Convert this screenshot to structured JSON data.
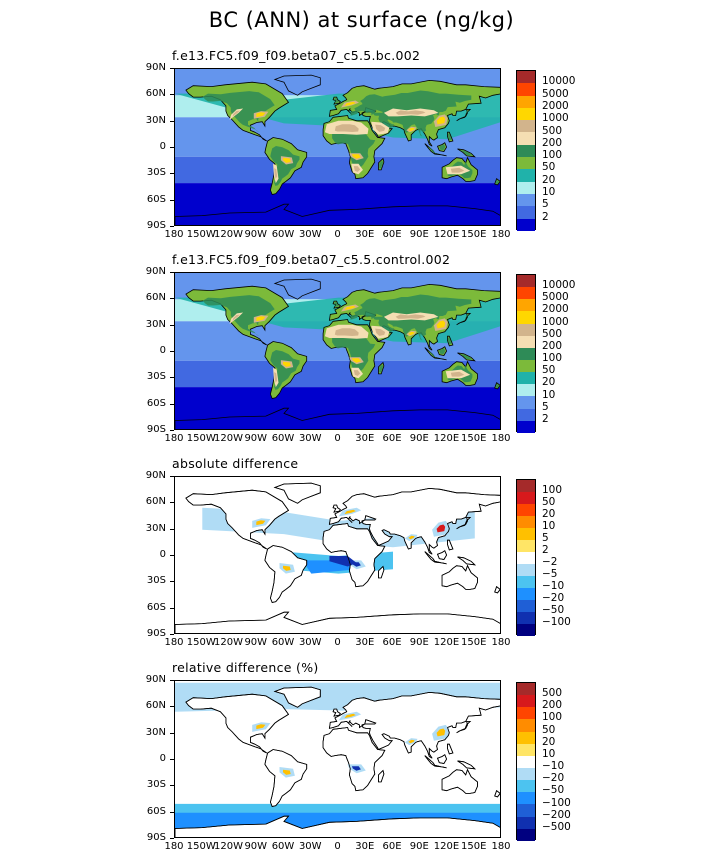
{
  "title": "BC (ANN) at surface (ng/kg)",
  "chart_data": [
    {
      "type": "heatmap",
      "subtitle": "f.e13.FC5.f09_f09.beta07_c5.5.bc.002",
      "y_ticks": [
        "90N",
        "60N",
        "30N",
        "0",
        "30S",
        "60S",
        "90S"
      ],
      "x_ticks": [
        "180",
        "150W",
        "120W",
        "90W",
        "60W",
        "30W",
        "0",
        "30E",
        "60E",
        "90E",
        "120E",
        "150E",
        "180"
      ],
      "levels": [
        "10000",
        "5000",
        "2000",
        "1000",
        "500",
        "200",
        "100",
        "50",
        "20",
        "10",
        "5",
        "2"
      ],
      "colors": [
        "#a52a2a",
        "#ff4500",
        "#ffa500",
        "#ffd700",
        "#d2b48c",
        "#f5deb3",
        "#2e8b57",
        "#7cba3a",
        "#20b2aa",
        "#afeeee",
        "#6495ed",
        "#4169e1",
        "#0000cd"
      ],
      "ocean": "#0a1ecc"
    },
    {
      "type": "heatmap",
      "subtitle": "f.e13.FC5.f09_f09.beta07_c5.5.control.002",
      "y_ticks": [
        "90N",
        "60N",
        "30N",
        "0",
        "30S",
        "60S",
        "90S"
      ],
      "x_ticks": [
        "180",
        "150W",
        "120W",
        "90W",
        "60W",
        "30W",
        "0",
        "30E",
        "60E",
        "90E",
        "120E",
        "150E",
        "180"
      ],
      "levels": [
        "10000",
        "5000",
        "2000",
        "1000",
        "500",
        "200",
        "100",
        "50",
        "20",
        "10",
        "5",
        "2"
      ],
      "colors": [
        "#a52a2a",
        "#ff4500",
        "#ffa500",
        "#ffd700",
        "#d2b48c",
        "#f5deb3",
        "#2e8b57",
        "#7cba3a",
        "#20b2aa",
        "#afeeee",
        "#6495ed",
        "#4169e1",
        "#0000cd"
      ],
      "ocean": "#0a1ecc"
    },
    {
      "type": "heatmap",
      "subtitle": "absolute difference",
      "y_ticks": [
        "90N",
        "60N",
        "30N",
        "0",
        "30S",
        "60S",
        "90S"
      ],
      "x_ticks": [
        "180",
        "150W",
        "120W",
        "90W",
        "60W",
        "30W",
        "0",
        "30E",
        "60E",
        "90E",
        "120E",
        "150E",
        "180"
      ],
      "levels": [
        "100",
        "50",
        "20",
        "10",
        "5",
        "2",
        "−2",
        "−5",
        "−10",
        "−20",
        "−50",
        "−100"
      ],
      "colors": [
        "#a52a2a",
        "#d7191c",
        "#ff4500",
        "#ff8c00",
        "#ffc000",
        "#ffe566",
        "#ffffff",
        "#b0dcf5",
        "#4cc3f0",
        "#1e90ff",
        "#1f5fd6",
        "#1030b0",
        "#000080"
      ],
      "ocean": "#ffffff"
    },
    {
      "type": "heatmap",
      "subtitle": "relative difference (%)",
      "y_ticks": [
        "90N",
        "60N",
        "30N",
        "0",
        "30S",
        "60S",
        "90S"
      ],
      "x_ticks": [
        "180",
        "150W",
        "120W",
        "90W",
        "60W",
        "30W",
        "0",
        "30E",
        "60E",
        "90E",
        "120E",
        "150E",
        "180"
      ],
      "levels": [
        "500",
        "200",
        "100",
        "50",
        "20",
        "10",
        "−10",
        "−20",
        "−50",
        "−100",
        "−200",
        "−500"
      ],
      "colors": [
        "#a52a2a",
        "#d7191c",
        "#ff4500",
        "#ff8c00",
        "#ffc000",
        "#ffe566",
        "#ffffff",
        "#b0dcf5",
        "#4cc3f0",
        "#1e90ff",
        "#1f5fd6",
        "#1030b0",
        "#000080"
      ],
      "ocean": "#ffffff"
    }
  ]
}
